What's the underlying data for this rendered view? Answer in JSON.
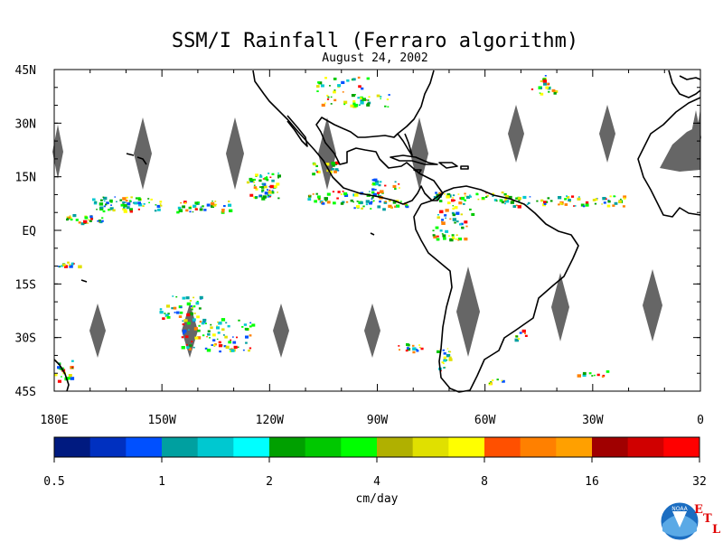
{
  "title": "SSM/I Rainfall (Ferraro algorithm)",
  "subtitle": "August 24, 2002",
  "lat_labels": [
    "45N",
    "30N",
    "15N",
    "EQ",
    "15S",
    "30S",
    "45S"
  ],
  "lon_labels": [
    "180E",
    "150W",
    "120W",
    "90W",
    "60W",
    "30W",
    "0"
  ],
  "colorbar": {
    "unit": "cm/day",
    "labels": [
      "0.5",
      "1",
      "2",
      "4",
      "8",
      "16",
      "32"
    ],
    "colors": [
      "#001a80",
      "#0030c0",
      "#0050ff",
      "#00a0a0",
      "#00c8d0",
      "#00ffff",
      "#00a000",
      "#00c800",
      "#00ff00",
      "#b0b000",
      "#e0e000",
      "#ffff00",
      "#ff5000",
      "#ff8000",
      "#ffa000",
      "#a00000",
      "#d00000",
      "#ff0000"
    ]
  },
  "map_extent": {
    "lon": [
      -180,
      0
    ],
    "lat": [
      -45,
      45
    ]
  },
  "land_color": "#000000",
  "gap_color": "#666666",
  "logo": {
    "agency": "NOAA",
    "letters": [
      "E",
      "T",
      "L"
    ]
  }
}
